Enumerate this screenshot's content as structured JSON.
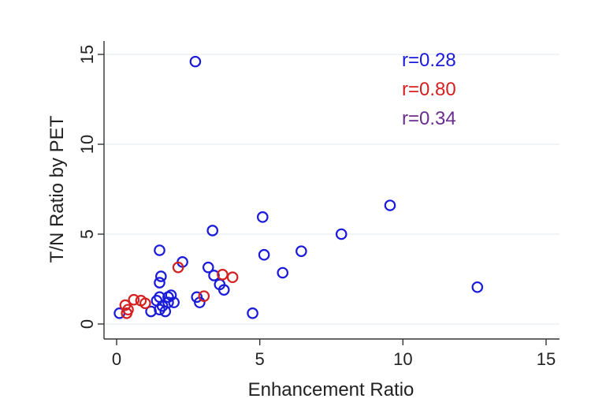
{
  "chart_data": {
    "type": "scatter",
    "title": "",
    "xlabel": "Enhancement Ratio",
    "ylabel": "T/N Ratio by PET",
    "xlim": [
      0,
      15
    ],
    "ylim": [
      0,
      15
    ],
    "x_ticks": [
      0,
      5,
      10,
      15
    ],
    "y_ticks": [
      0,
      5,
      10,
      15
    ],
    "grid": "horizontal",
    "annotations": [
      {
        "text": "r=0.28",
        "color": "#1a1adb"
      },
      {
        "text": "r=0.80",
        "color": "#d42020"
      },
      {
        "text": "r=0.34",
        "color": "#6a2d8f"
      }
    ],
    "series": [
      {
        "color": "#1a1adb",
        "points": [
          [
            0.1,
            0.6
          ],
          [
            1.2,
            0.7
          ],
          [
            1.4,
            1.3
          ],
          [
            1.5,
            0.8
          ],
          [
            1.6,
            1.0
          ],
          [
            1.5,
            1.5
          ],
          [
            1.7,
            0.7
          ],
          [
            1.8,
            1.2
          ],
          [
            1.8,
            1.5
          ],
          [
            1.9,
            1.6
          ],
          [
            2.0,
            1.2
          ],
          [
            1.5,
            2.3
          ],
          [
            1.55,
            2.65
          ],
          [
            1.5,
            4.1
          ],
          [
            2.3,
            3.45
          ],
          [
            2.75,
            14.6
          ],
          [
            2.8,
            1.5
          ],
          [
            2.9,
            1.2
          ],
          [
            3.2,
            3.15
          ],
          [
            3.4,
            2.7
          ],
          [
            3.35,
            5.2
          ],
          [
            3.6,
            2.2
          ],
          [
            3.75,
            1.9
          ],
          [
            4.75,
            0.6
          ],
          [
            5.1,
            5.95
          ],
          [
            5.15,
            3.85
          ],
          [
            5.8,
            2.85
          ],
          [
            6.45,
            4.05
          ],
          [
            7.85,
            5.0
          ],
          [
            9.55,
            6.6
          ],
          [
            12.6,
            2.05
          ]
        ]
      },
      {
        "color": "#d42020",
        "points": [
          [
            0.3,
            1.05
          ],
          [
            0.35,
            0.6
          ],
          [
            0.4,
            0.8
          ],
          [
            0.6,
            1.35
          ],
          [
            0.85,
            1.3
          ],
          [
            1.0,
            1.15
          ],
          [
            2.15,
            3.15
          ],
          [
            3.05,
            1.55
          ],
          [
            3.7,
            2.75
          ],
          [
            4.05,
            2.6
          ]
        ]
      }
    ]
  }
}
